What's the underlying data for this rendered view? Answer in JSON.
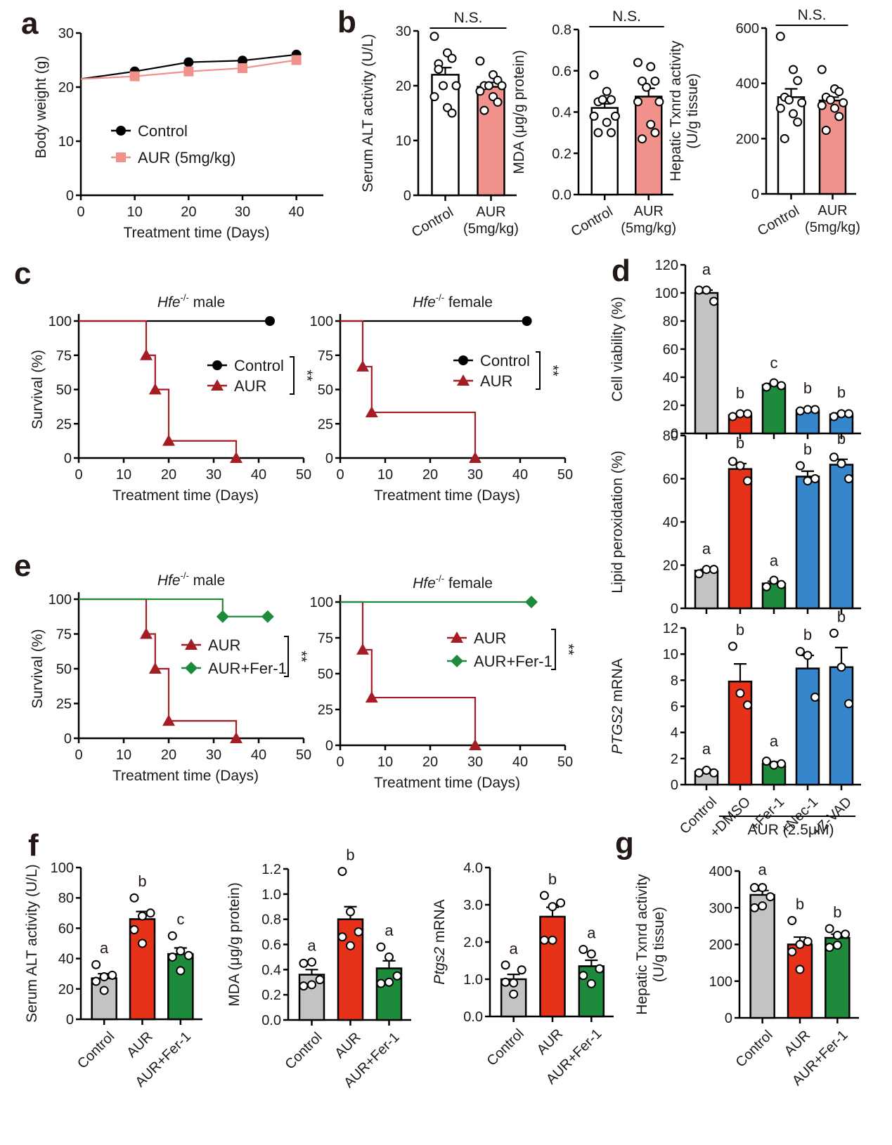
{
  "panels": [
    "a",
    "b",
    "c",
    "d",
    "e",
    "f",
    "g"
  ],
  "colors": {
    "black": "#000000",
    "pink": "#f0918b",
    "pink_line": "#f08c8c",
    "dark_red": "#a51c24",
    "green": "#1e8a3c",
    "grey": "#c3c3c3",
    "red": "#e53219",
    "blue": "#3686cc",
    "white": "#ffffff"
  },
  "chart_data": [
    {
      "id": "a",
      "type": "line",
      "xlabel": "Treatment time (Days)",
      "ylabel": "Body weight (g)",
      "xlim": [
        0,
        45
      ],
      "ylim": [
        0,
        30
      ],
      "xticks": [
        0,
        10,
        20,
        30,
        40
      ],
      "yticks": [
        0,
        10,
        20,
        30
      ],
      "series": [
        {
          "name": "Control",
          "marker": "circle",
          "color": "#000000",
          "x": [
            0,
            10,
            20,
            30,
            40
          ],
          "y": [
            21.5,
            22.9,
            24.6,
            24.9,
            26.0
          ]
        },
        {
          "name": "AUR (5mg/kg)",
          "marker": "square",
          "color": "#f0918b",
          "x": [
            0,
            10,
            20,
            30,
            40
          ],
          "y": [
            21.5,
            22.0,
            22.9,
            23.5,
            25.0
          ]
        }
      ],
      "legend": "center"
    },
    {
      "id": "b1",
      "type": "bar",
      "ylabel": "Serum ALT activity (U/L)",
      "ylim": [
        0,
        30
      ],
      "yticks": [
        0,
        10,
        20,
        30
      ],
      "categories": [
        "Control",
        "AUR\n(5mg/kg)"
      ],
      "values": [
        22.0,
        19.8
      ],
      "errors": [
        1.3,
        0.8
      ],
      "fills": [
        "#ffffff",
        "#f0918b"
      ],
      "points": [
        [
          29,
          26,
          25,
          24,
          20,
          20,
          18,
          16,
          15,
          23
        ],
        [
          24.5,
          22,
          21,
          20,
          20,
          20,
          19,
          18,
          17,
          15.5
        ]
      ],
      "significance": "N.S."
    },
    {
      "id": "b2",
      "type": "bar",
      "ylabel": "MDA (μg/g protein)",
      "ylim": [
        0,
        0.8
      ],
      "yticks": [
        0.0,
        0.2,
        0.4,
        0.6,
        0.8
      ],
      "categories": [
        "Control",
        "AUR\n(5mg/kg)"
      ],
      "values": [
        0.42,
        0.475
      ],
      "errors": [
        0.02,
        0.04
      ],
      "fills": [
        "#ffffff",
        "#f0918b"
      ],
      "points": [
        [
          0.58,
          0.5,
          0.46,
          0.45,
          0.46,
          0.38,
          0.38,
          0.35,
          0.3,
          0.3
        ],
        [
          0.64,
          0.62,
          0.55,
          0.55,
          0.52,
          0.45,
          0.45,
          0.34,
          0.3,
          0.27
        ]
      ],
      "significance": "N.S."
    },
    {
      "id": "b3",
      "type": "bar",
      "ylabel": "Hepatic Txnrd activity\n(U/g tissue)",
      "ylim": [
        0,
        600
      ],
      "yticks": [
        0,
        200,
        400,
        600
      ],
      "categories": [
        "Control",
        "AUR\n(5mg/kg)"
      ],
      "values": [
        350,
        338
      ],
      "errors": [
        30,
        12
      ],
      "fills": [
        "#ffffff",
        "#f0918b"
      ],
      "points": [
        [
          570,
          450,
          410,
          350,
          340,
          330,
          310,
          290,
          260,
          200
        ],
        [
          450,
          380,
          370,
          350,
          340,
          330,
          320,
          310,
          280,
          230
        ]
      ],
      "significance": "N.S."
    },
    {
      "id": "c1",
      "type": "line",
      "title": "Hfe⁻/⁻ male",
      "xlabel": "Treatment time (Days)",
      "ylabel": "Survival (%)",
      "xlim": [
        0,
        50
      ],
      "ylim": [
        0,
        100
      ],
      "xticks": [
        0,
        10,
        20,
        30,
        40,
        50
      ],
      "yticks": [
        0,
        25,
        50,
        75,
        100
      ],
      "series": [
        {
          "name": "Control",
          "marker": "circle",
          "color": "#000000",
          "step": true,
          "x": [
            0,
            42.5
          ],
          "y": [
            100,
            100
          ],
          "marks": [
            [
              42.5,
              100
            ]
          ]
        },
        {
          "name": "AUR",
          "marker": "triangle",
          "color": "#a51c24",
          "step": true,
          "x": [
            0,
            15,
            17,
            20,
            35
          ],
          "y": [
            100,
            75,
            50,
            12.5,
            0
          ],
          "marks": [
            [
              15,
              75
            ],
            [
              17,
              50
            ],
            [
              20,
              12.5
            ],
            [
              35,
              0
            ]
          ]
        }
      ],
      "significance": "**"
    },
    {
      "id": "c2",
      "type": "line",
      "title": "Hfe⁻/⁻ female",
      "xlabel": "Treatment time (Days)",
      "ylabel": "",
      "xlim": [
        0,
        50
      ],
      "ylim": [
        0,
        100
      ],
      "xticks": [
        0,
        10,
        20,
        30,
        40,
        50
      ],
      "yticks": [
        0,
        25,
        50,
        75,
        100
      ],
      "series": [
        {
          "name": "Control",
          "marker": "circle",
          "color": "#000000",
          "step": true,
          "x": [
            0,
            41.5
          ],
          "y": [
            100,
            100
          ],
          "marks": [
            [
              41.5,
              100
            ]
          ]
        },
        {
          "name": "AUR",
          "marker": "triangle",
          "color": "#a51c24",
          "step": true,
          "x": [
            0,
            5,
            7,
            30
          ],
          "y": [
            100,
            66.7,
            33.3,
            0
          ],
          "marks": [
            [
              5,
              66.7
            ],
            [
              7,
              33.3
            ],
            [
              30,
              0
            ]
          ]
        }
      ],
      "significance": "**"
    },
    {
      "id": "d1",
      "type": "bar",
      "ylabel": "Cell viability (%)",
      "ylim": [
        0,
        120
      ],
      "yticks": [
        0,
        20,
        40,
        60,
        80,
        100,
        120
      ],
      "categories": [
        "Control",
        "+DMSO",
        "+Fer-1",
        "+Nec-1",
        "+Z-VAD"
      ],
      "values": [
        100,
        13,
        34.5,
        16.5,
        13.5
      ],
      "errors": [
        2,
        1,
        1,
        1,
        1
      ],
      "fills": [
        "#c3c3c3",
        "#e53219",
        "#1e8a3c",
        "#3686cc",
        "#3686cc"
      ],
      "points": [
        [
          102,
          102,
          94
        ],
        [
          12,
          14,
          14
        ],
        [
          33,
          36,
          34
        ],
        [
          16,
          17,
          17
        ],
        [
          12,
          14,
          14
        ]
      ],
      "letters": [
        "a",
        "b",
        "c",
        "b",
        "b"
      ]
    },
    {
      "id": "d2",
      "type": "bar",
      "ylabel": "Lipid peroxidation (%)",
      "ylim": [
        0,
        80
      ],
      "yticks": [
        0,
        20,
        40,
        60,
        80
      ],
      "categories": [
        "Control",
        "+DMSO",
        "+Fer-1",
        "+Nec-1",
        "+Z-VAD"
      ],
      "values": [
        17.5,
        64.5,
        11.5,
        61,
        66.5
      ],
      "errors": [
        0.5,
        2.5,
        1.0,
        2.5,
        2.5
      ],
      "fills": [
        "#c3c3c3",
        "#e53219",
        "#1e8a3c",
        "#3686cc",
        "#3686cc"
      ],
      "points": [
        [
          16,
          18,
          18
        ],
        [
          68,
          66,
          59
        ],
        [
          10,
          13,
          11
        ],
        [
          66,
          59,
          60
        ],
        [
          70,
          67,
          60
        ]
      ],
      "letters": [
        "a",
        "b",
        "a",
        "b",
        "b"
      ]
    },
    {
      "id": "d3",
      "type": "bar",
      "ylabel": "PTGS2 mRNA",
      "ylim": [
        0,
        12
      ],
      "yticks": [
        0,
        2,
        4,
        6,
        8,
        10,
        12
      ],
      "categories": [
        "Control",
        "+DMSO",
        "+Fer-1",
        "+Nec-1",
        "+Z-VAD"
      ],
      "values": [
        1.0,
        7.9,
        1.6,
        8.9,
        9.0
      ],
      "errors": [
        0.15,
        1.35,
        0.15,
        1.0,
        1.5
      ],
      "fills": [
        "#c3c3c3",
        "#e53219",
        "#1e8a3c",
        "#3686cc",
        "#3686cc"
      ],
      "points": [
        [
          0.9,
          1.1,
          0.9
        ],
        [
          10.6,
          7.0,
          6.1
        ],
        [
          1.8,
          1.5,
          1.6
        ],
        [
          10.2,
          9.9,
          6.7
        ],
        [
          11.6,
          9.0,
          6.2
        ]
      ],
      "letters": [
        "a",
        "b",
        "a",
        "b",
        "b"
      ],
      "group_label": "AUR (2.5μM)"
    },
    {
      "id": "e1",
      "type": "line",
      "title": "Hfe⁻/⁻ male",
      "xlabel": "Treatment time (Days)",
      "ylabel": "Survival (%)",
      "xlim": [
        0,
        50
      ],
      "ylim": [
        0,
        100
      ],
      "xticks": [
        0,
        10,
        20,
        30,
        40,
        50
      ],
      "yticks": [
        0,
        25,
        50,
        75,
        100
      ],
      "series": [
        {
          "name": "AUR",
          "marker": "triangle",
          "color": "#a51c24",
          "step": true,
          "x": [
            0,
            15,
            17,
            20,
            35
          ],
          "y": [
            100,
            75,
            50,
            12.5,
            0
          ],
          "marks": [
            [
              15,
              75
            ],
            [
              17,
              50
            ],
            [
              20,
              12.5
            ],
            [
              35,
              0
            ]
          ]
        },
        {
          "name": "AUR+Fer-1",
          "marker": "diamond",
          "color": "#1e8a3c",
          "step": true,
          "x": [
            0,
            32,
            42
          ],
          "y": [
            100,
            87.5,
            87.5
          ],
          "marks": [
            [
              32,
              87.5
            ],
            [
              42,
              87.5
            ]
          ]
        }
      ],
      "significance": "**"
    },
    {
      "id": "e2",
      "type": "line",
      "title": "Hfe⁻/⁻ female",
      "xlabel": "Treatment time (Days)",
      "ylabel": "",
      "xlim": [
        0,
        50
      ],
      "ylim": [
        0,
        100
      ],
      "xticks": [
        0,
        10,
        20,
        30,
        40,
        50
      ],
      "yticks": [
        0,
        25,
        50,
        75,
        100
      ],
      "series": [
        {
          "name": "AUR",
          "marker": "triangle",
          "color": "#a51c24",
          "step": true,
          "x": [
            0,
            5,
            7,
            30
          ],
          "y": [
            100,
            66.7,
            33.3,
            0
          ],
          "marks": [
            [
              5,
              66.7
            ],
            [
              7,
              33.3
            ],
            [
              30,
              0
            ]
          ]
        },
        {
          "name": "AUR+Fer-1",
          "marker": "diamond",
          "color": "#1e8a3c",
          "step": true,
          "x": [
            0,
            42.5
          ],
          "y": [
            100,
            100
          ],
          "marks": [
            [
              42.5,
              100
            ]
          ]
        }
      ],
      "significance": "**"
    },
    {
      "id": "f1",
      "type": "bar",
      "ylabel": "Serum ALT activity (U/L)",
      "ylim": [
        0,
        100
      ],
      "yticks": [
        0,
        20,
        40,
        60,
        80,
        100
      ],
      "categories": [
        "Control",
        "AUR",
        "AUR+Fer-1"
      ],
      "values": [
        27,
        66,
        43
      ],
      "errors": [
        3,
        5,
        4
      ],
      "fills": [
        "#c3c3c3",
        "#e53219",
        "#1e8a3c"
      ],
      "points": [
        [
          36,
          28,
          29,
          25,
          19
        ],
        [
          80,
          68,
          70,
          59,
          50
        ],
        [
          55,
          45,
          42,
          41,
          32
        ]
      ],
      "letters": [
        "a",
        "b",
        "c"
      ]
    },
    {
      "id": "f2",
      "type": "bar",
      "ylabel": "MDA (μg/g protein)",
      "ylim": [
        0,
        1.2
      ],
      "yticks": [
        0.0,
        0.2,
        0.4,
        0.6,
        0.8,
        1.0,
        1.2
      ],
      "categories": [
        "Control",
        "AUR",
        "AUR+Fer-1"
      ],
      "values": [
        0.36,
        0.8,
        0.41
      ],
      "errors": [
        0.04,
        0.1,
        0.06
      ],
      "fills": [
        "#c3c3c3",
        "#e53219",
        "#1e8a3c"
      ],
      "points": [
        [
          0.45,
          0.46,
          0.32,
          0.27,
          0.28
        ],
        [
          1.18,
          0.86,
          0.7,
          0.66,
          0.59
        ],
        [
          0.58,
          0.5,
          0.35,
          0.29,
          0.3
        ]
      ],
      "letters": [
        "a",
        "b",
        "a"
      ]
    },
    {
      "id": "f3",
      "type": "bar",
      "ylabel": "Ptgs2 mRNA",
      "ylim": [
        0,
        4.0
      ],
      "yticks": [
        0.0,
        1.0,
        2.0,
        3.0,
        4.0
      ],
      "categories": [
        "Control",
        "AUR",
        "AUR+Fer-1"
      ],
      "values": [
        1.0,
        2.68,
        1.35
      ],
      "errors": [
        0.13,
        0.25,
        0.16
      ],
      "fills": [
        "#c3c3c3",
        "#e53219",
        "#1e8a3c"
      ],
      "points": [
        [
          1.38,
          0.9,
          1.25,
          0.92,
          0.6
        ],
        [
          3.25,
          2.95,
          3.05,
          2.05,
          2.05
        ],
        [
          1.8,
          1.68,
          1.28,
          1.1,
          0.88
        ]
      ],
      "letters": [
        "a",
        "b",
        "a"
      ]
    },
    {
      "id": "g",
      "type": "bar",
      "ylabel": "Hepatic Txnrd activity\n(U/g tissue)",
      "ylim": [
        0,
        400
      ],
      "yticks": [
        0,
        100,
        200,
        300,
        400
      ],
      "categories": [
        "Control",
        "AUR",
        "AUR+Fer-1"
      ],
      "values": [
        335,
        200,
        218
      ],
      "errors": [
        12,
        20,
        10
      ],
      "fills": [
        "#c3c3c3",
        "#e53219",
        "#1e8a3c"
      ],
      "points": [
        [
          355,
          355,
          330,
          300,
          305
        ],
        [
          265,
          200,
          208,
          180,
          132
        ],
        [
          243,
          225,
          228,
          192,
          198
        ]
      ],
      "letters": [
        "a",
        "b",
        "b"
      ]
    }
  ]
}
